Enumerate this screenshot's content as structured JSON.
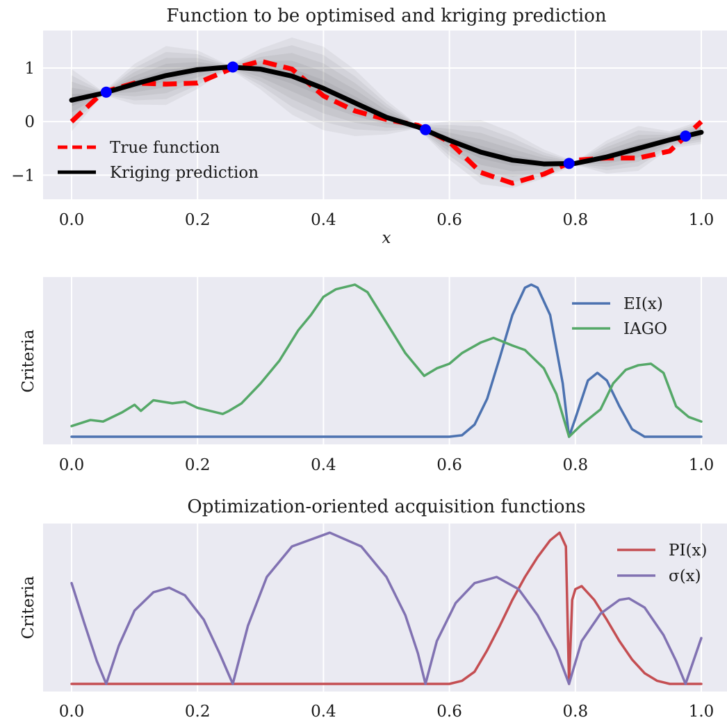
{
  "chart_data": [
    {
      "type": "line",
      "title": "Function to be optimised and kriging prediction",
      "xlabel": "x",
      "ylabel": "",
      "xlim": [
        0,
        1
      ],
      "ylim": [
        -1.45,
        1.7
      ],
      "xticks": [
        "0.0",
        "0.2",
        "0.4",
        "0.6",
        "0.8",
        "1.0"
      ],
      "yticks": [
        "1",
        "0",
        "−1"
      ],
      "ytick_values": [
        1,
        0,
        -1
      ],
      "grid": true,
      "legend": "lower-left",
      "observations": [
        {
          "x": 0.055,
          "y": 0.55
        },
        {
          "x": 0.256,
          "y": 1.02
        },
        {
          "x": 0.562,
          "y": -0.15
        },
        {
          "x": 0.79,
          "y": -0.78
        },
        {
          "x": 0.975,
          "y": -0.27
        }
      ],
      "series": [
        {
          "name": "True function",
          "style": "dashed",
          "color": "#ff0000",
          "x": [
            0.0,
            0.05,
            0.1,
            0.15,
            0.2,
            0.25,
            0.3,
            0.35,
            0.4,
            0.45,
            0.5,
            0.55,
            0.6,
            0.65,
            0.7,
            0.75,
            0.8,
            0.85,
            0.9,
            0.95,
            1.0
          ],
          "y": [
            0.0,
            0.55,
            0.72,
            0.7,
            0.72,
            0.97,
            1.13,
            0.98,
            0.48,
            0.2,
            0.04,
            -0.07,
            -0.38,
            -0.95,
            -1.15,
            -0.98,
            -0.72,
            -0.68,
            -0.68,
            -0.55,
            0.0
          ]
        },
        {
          "name": "Kriging prediction",
          "style": "solid",
          "color": "#000000",
          "x": [
            0.0,
            0.05,
            0.1,
            0.15,
            0.2,
            0.25,
            0.3,
            0.35,
            0.4,
            0.45,
            0.5,
            0.55,
            0.6,
            0.65,
            0.7,
            0.75,
            0.8,
            0.85,
            0.9,
            0.95,
            1.0
          ],
          "y": [
            0.4,
            0.53,
            0.7,
            0.86,
            0.97,
            1.02,
            0.98,
            0.85,
            0.62,
            0.35,
            0.08,
            -0.1,
            -0.35,
            -0.57,
            -0.72,
            -0.79,
            -0.78,
            -0.66,
            -0.5,
            -0.34,
            -0.2
          ]
        }
      ],
      "uncertainty_band": {
        "color": "#000000",
        "x": [
          0.0,
          0.05,
          0.1,
          0.15,
          0.2,
          0.25,
          0.3,
          0.35,
          0.4,
          0.45,
          0.5,
          0.55,
          0.6,
          0.65,
          0.7,
          0.75,
          0.8,
          0.85,
          0.9,
          0.95,
          1.0
        ],
        "width": [
          0.58,
          0.03,
          0.38,
          0.55,
          0.36,
          0.03,
          0.38,
          0.72,
          0.78,
          0.62,
          0.32,
          0.03,
          0.36,
          0.6,
          0.52,
          0.27,
          0.03,
          0.31,
          0.42,
          0.16,
          0.22
        ],
        "levels": [
          1.0,
          0.8,
          0.6,
          0.4,
          0.2
        ]
      }
    },
    {
      "type": "line",
      "title": "",
      "xlabel": "",
      "ylabel": "Criteria",
      "xlim": [
        0,
        1
      ],
      "ylim": [
        -0.05,
        1.05
      ],
      "xticks": [
        "0.0",
        "0.2",
        "0.4",
        "0.6",
        "0.8",
        "1.0"
      ],
      "grid": true,
      "legend": "top-right",
      "series": [
        {
          "name": "EI(x)",
          "color": "#4c72b0",
          "x": [
            0.0,
            0.6,
            0.62,
            0.64,
            0.66,
            0.68,
            0.7,
            0.72,
            0.73,
            0.74,
            0.76,
            0.78,
            0.79,
            0.8,
            0.82,
            0.835,
            0.85,
            0.87,
            0.89,
            0.91,
            1.0
          ],
          "y": [
            0.0,
            0.0,
            0.01,
            0.08,
            0.25,
            0.52,
            0.8,
            0.98,
            1.0,
            0.98,
            0.8,
            0.35,
            0.0,
            0.12,
            0.37,
            0.42,
            0.37,
            0.2,
            0.05,
            0.0,
            0.0
          ]
        },
        {
          "name": "IAGO",
          "color": "#55a868",
          "x": [
            0.0,
            0.03,
            0.05,
            0.08,
            0.1,
            0.11,
            0.13,
            0.16,
            0.18,
            0.2,
            0.22,
            0.24,
            0.25,
            0.27,
            0.3,
            0.33,
            0.36,
            0.38,
            0.4,
            0.42,
            0.45,
            0.47,
            0.5,
            0.53,
            0.56,
            0.58,
            0.6,
            0.62,
            0.65,
            0.67,
            0.7,
            0.72,
            0.75,
            0.77,
            0.79,
            0.81,
            0.84,
            0.86,
            0.88,
            0.9,
            0.92,
            0.94,
            0.96,
            0.98,
            1.0
          ],
          "y": [
            0.07,
            0.11,
            0.1,
            0.16,
            0.21,
            0.17,
            0.24,
            0.22,
            0.23,
            0.19,
            0.17,
            0.15,
            0.17,
            0.22,
            0.35,
            0.5,
            0.7,
            0.8,
            0.92,
            0.97,
            1.0,
            0.95,
            0.75,
            0.55,
            0.4,
            0.45,
            0.48,
            0.55,
            0.62,
            0.65,
            0.6,
            0.57,
            0.45,
            0.28,
            0.0,
            0.08,
            0.18,
            0.35,
            0.44,
            0.47,
            0.48,
            0.42,
            0.2,
            0.13,
            0.1
          ]
        }
      ]
    },
    {
      "type": "line",
      "title": "Optimization-oriented acquisition functions",
      "xlabel": "",
      "ylabel": "Criteria",
      "xlim": [
        0,
        1
      ],
      "ylim": [
        -0.05,
        1.05
      ],
      "xticks": [
        "0.0",
        "0.2",
        "0.4",
        "0.6",
        "0.8",
        "1.0"
      ],
      "grid": true,
      "legend": "top-right",
      "series": [
        {
          "name": "PI(x)",
          "color": "#c44e52",
          "x": [
            0.0,
            0.6,
            0.62,
            0.64,
            0.66,
            0.68,
            0.7,
            0.72,
            0.74,
            0.76,
            0.775,
            0.785,
            0.79,
            0.795,
            0.8,
            0.81,
            0.83,
            0.85,
            0.87,
            0.89,
            0.91,
            0.93,
            0.95,
            1.0
          ],
          "y": [
            0.0,
            0.0,
            0.02,
            0.08,
            0.22,
            0.38,
            0.55,
            0.7,
            0.83,
            0.94,
            0.99,
            0.9,
            0.0,
            0.55,
            0.62,
            0.64,
            0.55,
            0.42,
            0.28,
            0.16,
            0.07,
            0.02,
            0.0,
            0.0
          ]
        },
        {
          "name": "σ(x)",
          "color": "#8172b2",
          "x": [
            0.0,
            0.02,
            0.04,
            0.055,
            0.075,
            0.1,
            0.13,
            0.155,
            0.18,
            0.21,
            0.235,
            0.256,
            0.28,
            0.31,
            0.35,
            0.41,
            0.46,
            0.5,
            0.53,
            0.55,
            0.562,
            0.58,
            0.61,
            0.64,
            0.675,
            0.71,
            0.74,
            0.77,
            0.79,
            0.81,
            0.84,
            0.87,
            0.885,
            0.91,
            0.94,
            0.96,
            0.975,
            0.99,
            1.0
          ],
          "y": [
            0.66,
            0.4,
            0.15,
            0.0,
            0.25,
            0.48,
            0.6,
            0.63,
            0.58,
            0.42,
            0.2,
            0.0,
            0.38,
            0.7,
            0.9,
            0.99,
            0.9,
            0.7,
            0.45,
            0.2,
            0.0,
            0.28,
            0.53,
            0.66,
            0.7,
            0.62,
            0.45,
            0.22,
            0.0,
            0.28,
            0.46,
            0.55,
            0.56,
            0.5,
            0.32,
            0.15,
            0.0,
            0.18,
            0.3
          ]
        }
      ]
    }
  ]
}
